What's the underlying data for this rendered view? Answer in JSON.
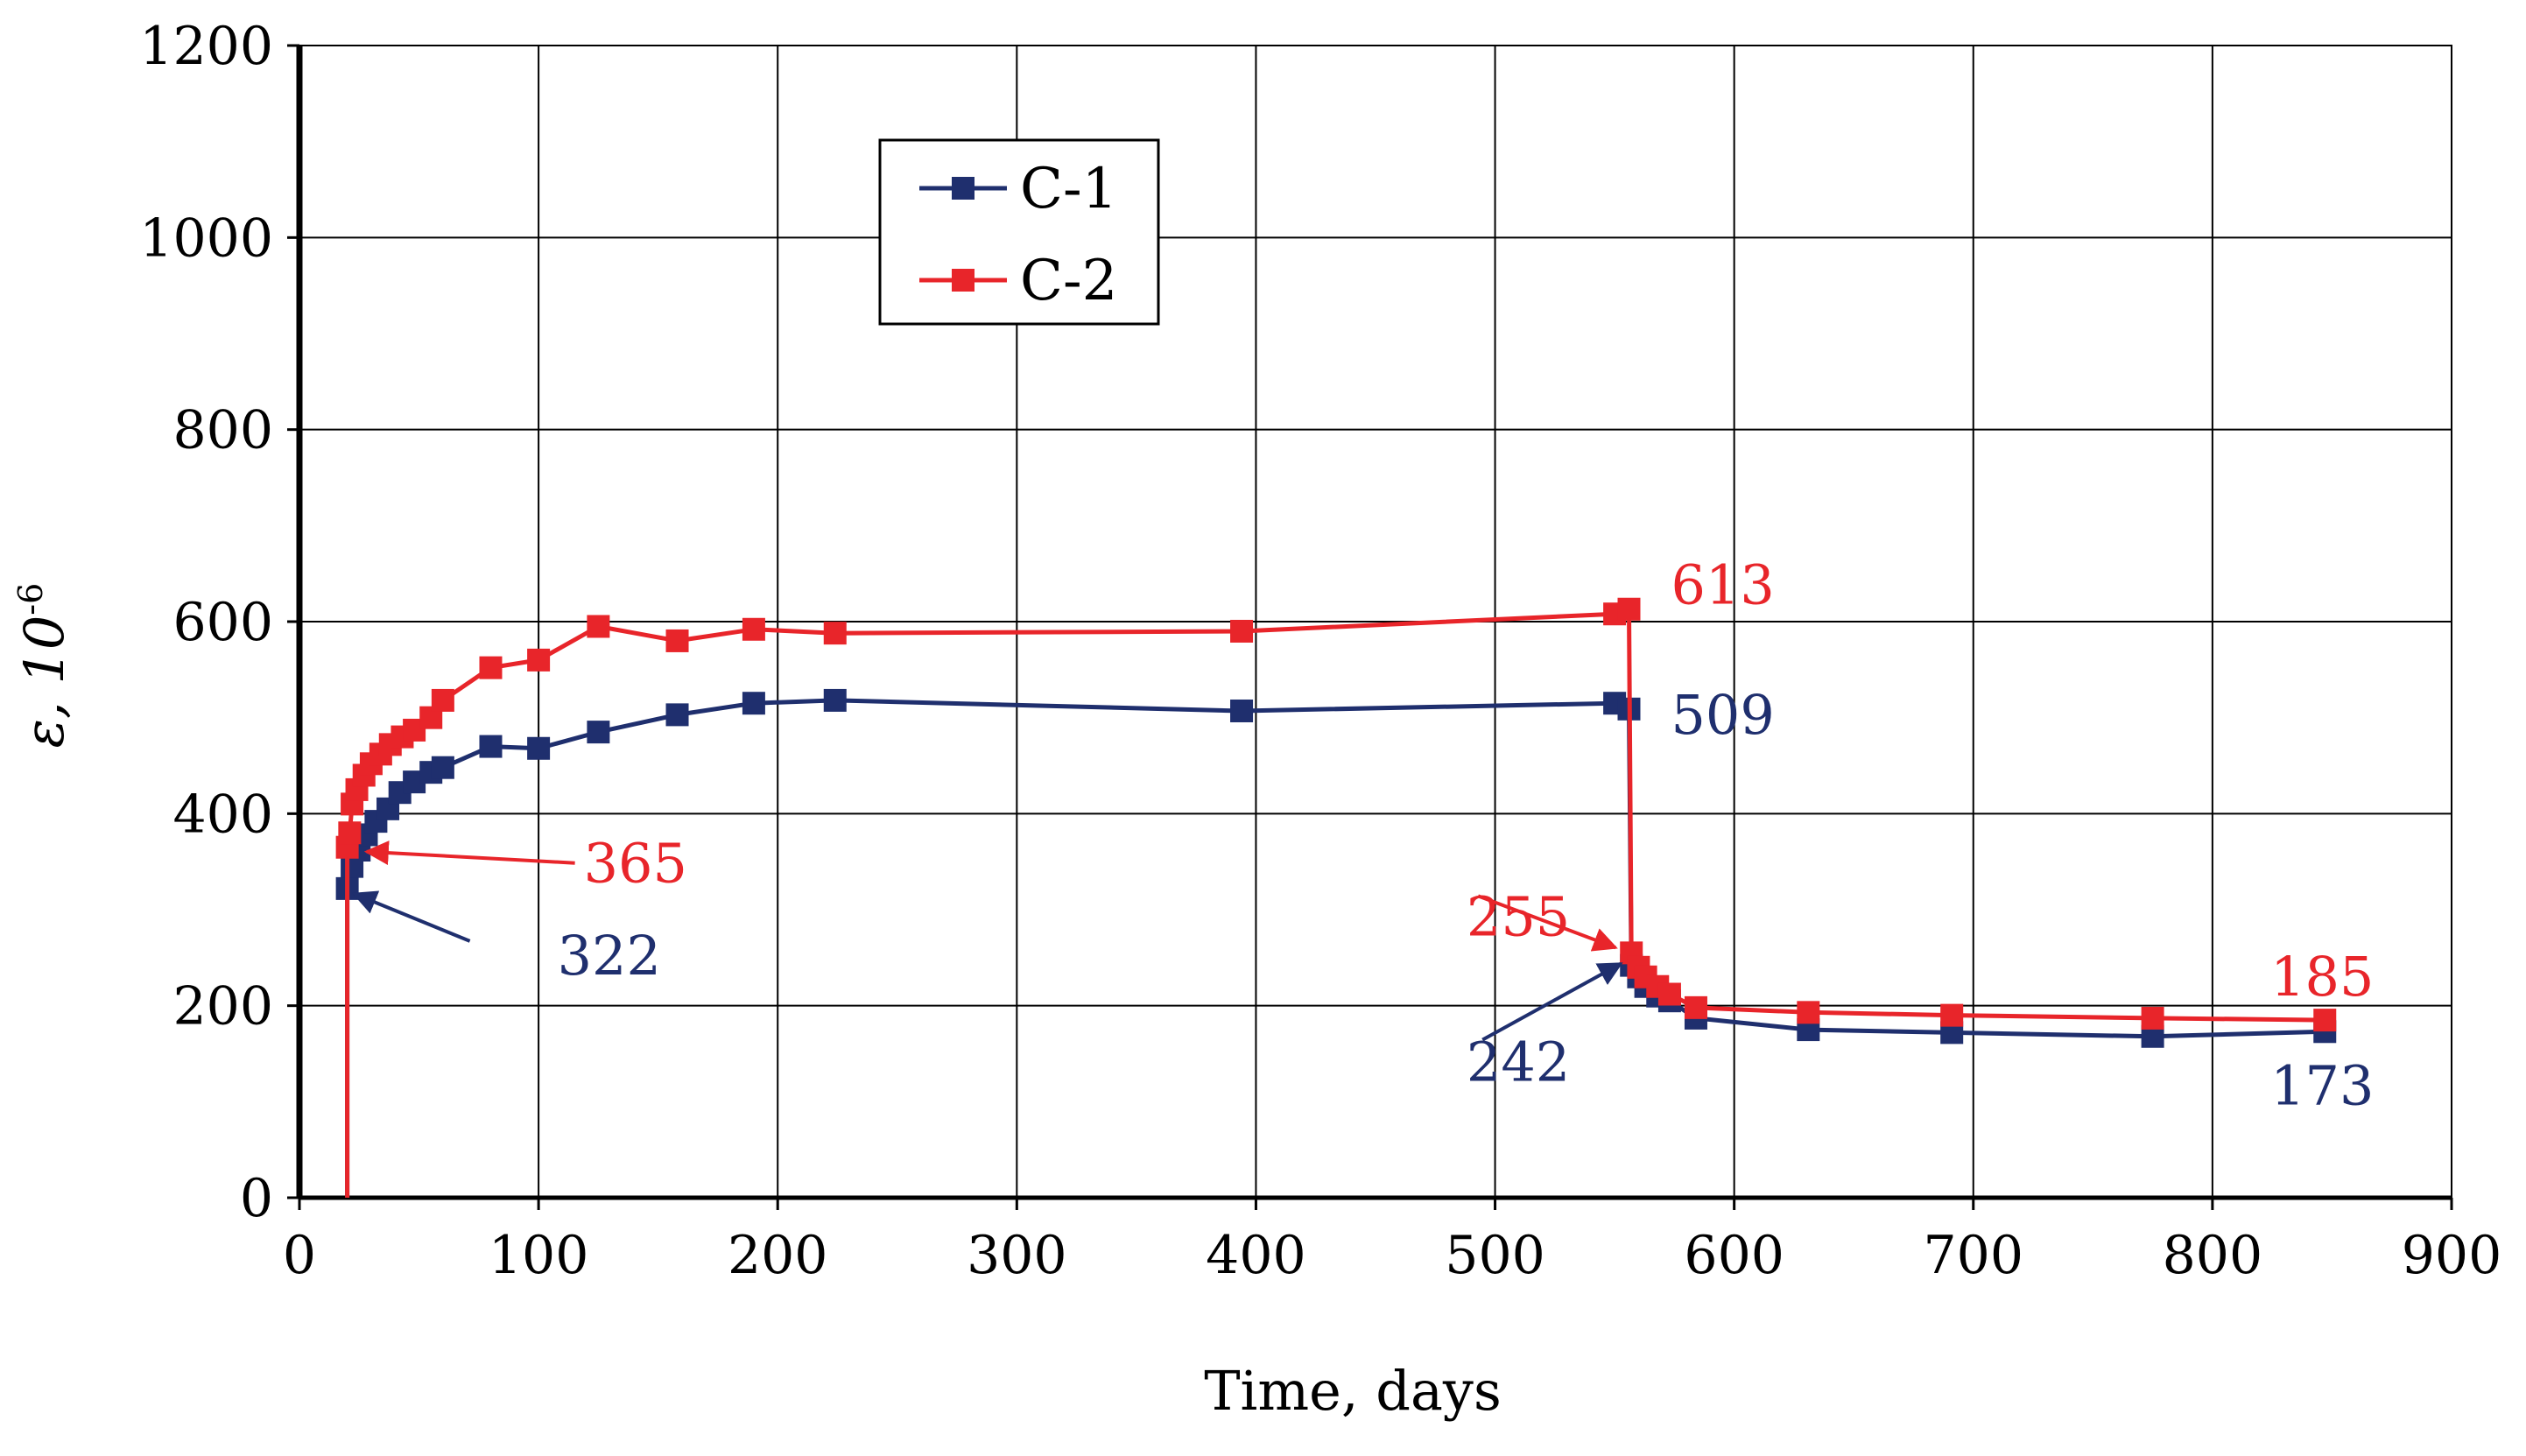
{
  "chart_data": {
    "type": "line",
    "title": "",
    "xlabel": "Time, days",
    "ylabel_prefix": "ε, 10",
    "ylabel_exponent": "-6",
    "xlim": [
      0,
      900
    ],
    "ylim": [
      0,
      1200
    ],
    "x_ticks": [
      0,
      100,
      200,
      300,
      400,
      500,
      600,
      700,
      800,
      900
    ],
    "y_ticks": [
      0,
      200,
      400,
      600,
      800,
      1000,
      1200
    ],
    "grid": true,
    "legend_position": "top-center-left",
    "series": [
      {
        "name": "C-1",
        "color": "#1f2f6e",
        "points": [
          [
            20,
            0
          ],
          [
            20,
            322
          ],
          [
            22,
            345
          ],
          [
            25,
            362
          ],
          [
            28,
            378
          ],
          [
            32,
            392
          ],
          [
            37,
            405
          ],
          [
            42,
            422
          ],
          [
            48,
            433
          ],
          [
            55,
            443
          ],
          [
            60,
            448
          ],
          [
            80,
            470
          ],
          [
            100,
            468
          ],
          [
            125,
            485
          ],
          [
            158,
            503
          ],
          [
            190,
            515
          ],
          [
            224,
            518
          ],
          [
            394,
            507
          ],
          [
            550,
            515
          ],
          [
            556,
            509
          ],
          [
            557,
            242
          ],
          [
            560,
            230
          ],
          [
            563,
            220
          ],
          [
            568,
            210
          ],
          [
            573,
            205
          ],
          [
            584,
            187
          ],
          [
            631,
            175
          ],
          [
            691,
            172
          ],
          [
            775,
            168
          ],
          [
            847,
            173
          ]
        ]
      },
      {
        "name": "C-2",
        "color": "#e8252a",
        "points": [
          [
            20,
            0
          ],
          [
            20,
            365
          ],
          [
            21,
            380
          ],
          [
            22,
            410
          ],
          [
            24,
            425
          ],
          [
            27,
            440
          ],
          [
            30,
            452
          ],
          [
            34,
            462
          ],
          [
            38,
            472
          ],
          [
            43,
            480
          ],
          [
            48,
            487
          ],
          [
            55,
            500
          ],
          [
            60,
            518
          ],
          [
            80,
            552
          ],
          [
            100,
            560
          ],
          [
            125,
            595
          ],
          [
            158,
            580
          ],
          [
            190,
            592
          ],
          [
            224,
            588
          ],
          [
            394,
            590
          ],
          [
            550,
            608
          ],
          [
            556,
            613
          ],
          [
            557,
            255
          ],
          [
            560,
            240
          ],
          [
            563,
            230
          ],
          [
            568,
            220
          ],
          [
            573,
            212
          ],
          [
            584,
            198
          ],
          [
            631,
            193
          ],
          [
            691,
            190
          ],
          [
            775,
            187
          ],
          [
            847,
            185
          ]
        ]
      }
    ],
    "annotations": [
      {
        "text": "365",
        "series": "C-2",
        "x": 20,
        "y": 365,
        "color": "#e8252a"
      },
      {
        "text": "322",
        "series": "C-1",
        "x": 20,
        "y": 322,
        "color": "#1f2f6e"
      },
      {
        "text": "613",
        "series": "C-2",
        "x": 556,
        "y": 613,
        "color": "#e8252a"
      },
      {
        "text": "509",
        "series": "C-1",
        "x": 556,
        "y": 509,
        "color": "#1f2f6e"
      },
      {
        "text": "255",
        "series": "C-2",
        "x": 557,
        "y": 255,
        "color": "#e8252a"
      },
      {
        "text": "242",
        "series": "C-1",
        "x": 557,
        "y": 242,
        "color": "#1f2f6e"
      },
      {
        "text": "185",
        "series": "C-2",
        "x": 847,
        "y": 185,
        "color": "#e8252a"
      },
      {
        "text": "173",
        "series": "C-1",
        "x": 847,
        "y": 173,
        "color": "#1f2f6e"
      }
    ]
  }
}
